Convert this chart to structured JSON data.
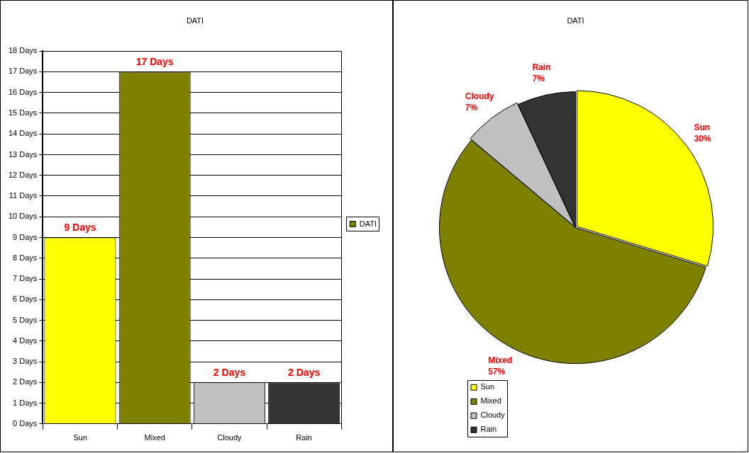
{
  "chart_data": [
    {
      "type": "bar",
      "title": "DATI",
      "categories": [
        "Sun",
        "Mixed",
        "Cloudy",
        "Rain"
      ],
      "series": [
        {
          "name": "DATI",
          "color": "#808000",
          "colors": [
            "#ffff00",
            "#808000",
            "#c0c0c0",
            "#333333"
          ],
          "values": [
            9,
            17,
            2,
            2
          ],
          "value_labels": [
            "9 Days",
            "17 Days",
            "2 Days",
            "2 Days"
          ]
        }
      ],
      "ylim": [
        0,
        18
      ],
      "yticks": [
        {
          "value": 0,
          "label": "0 Days"
        },
        {
          "value": 1,
          "label": "1 Days"
        },
        {
          "value": 2,
          "label": "2 Days"
        },
        {
          "value": 3,
          "label": "3 Days"
        },
        {
          "value": 4,
          "label": "4 Days"
        },
        {
          "value": 5,
          "label": "5 Days"
        },
        {
          "value": 6,
          "label": "6 Days"
        },
        {
          "value": 7,
          "label": "7 Days"
        },
        {
          "value": 8,
          "label": "8 Days"
        },
        {
          "value": 9,
          "label": "9 Days"
        },
        {
          "value": 10,
          "label": "10 Days"
        },
        {
          "value": 11,
          "label": "11 Days"
        },
        {
          "value": 12,
          "label": "12 Days"
        },
        {
          "value": 13,
          "label": "13 Days"
        },
        {
          "value": 14,
          "label": "14 Days"
        },
        {
          "value": 15,
          "label": "15 Days"
        },
        {
          "value": 16,
          "label": "16 Days"
        },
        {
          "value": 17,
          "label": "17 Days"
        },
        {
          "value": 18,
          "label": "18 Days"
        }
      ],
      "grid": "y",
      "legend": "right"
    },
    {
      "type": "pie",
      "title": "DATI",
      "categories": [
        "Sun",
        "Mixed",
        "Cloudy",
        "Rain"
      ],
      "values": [
        30,
        57,
        7,
        7
      ],
      "colors": [
        "#ffff00",
        "#808000",
        "#c0c0c0",
        "#333333"
      ],
      "value_labels": [
        "30%",
        "57%",
        "7%",
        "7%"
      ],
      "legend": "bottom left"
    }
  ]
}
